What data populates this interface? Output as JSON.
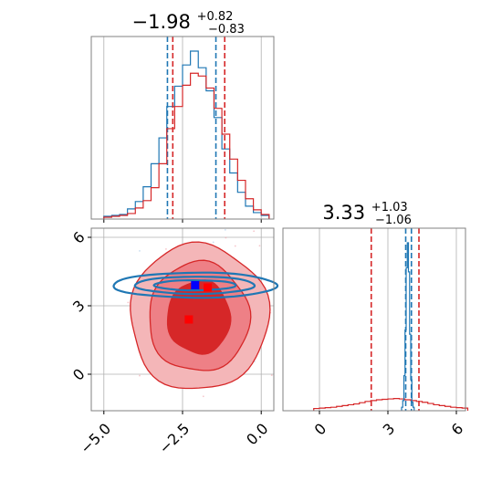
{
  "chart_data": [
    {
      "id": "marginal-x",
      "type": "histogram",
      "title": {
        "value": "−1.98",
        "sup": "+0.82",
        "sub": "−0.83"
      },
      "xlim": [
        -5.4,
        0.4
      ],
      "grid": true,
      "show_x_tick_labels": false,
      "x_ticks": [
        -5.0,
        -2.5,
        0.0
      ],
      "series": [
        {
          "color": "#1f77b4",
          "bin_edges": [
            -5.0,
            -4.75,
            -4.5,
            -4.25,
            -4.0,
            -3.75,
            -3.5,
            -3.25,
            -3.0,
            -2.75,
            -2.5,
            -2.25,
            -2.0,
            -1.75,
            -1.5,
            -1.25,
            -1.0,
            -0.75,
            -0.5,
            -0.25,
            0.0,
            0.25
          ],
          "counts": [
            1,
            2,
            3,
            9,
            17,
            33,
            58,
            86,
            120,
            142,
            165,
            180,
            162,
            137,
            108,
            74,
            48,
            27,
            12,
            5,
            2
          ],
          "quantile_lines": [
            -2.98,
            -1.44
          ]
        },
        {
          "color": "#d62728",
          "bin_edges": [
            -5.0,
            -4.75,
            -4.5,
            -4.25,
            -4.0,
            -3.75,
            -3.5,
            -3.25,
            -3.0,
            -2.75,
            -2.5,
            -2.25,
            -2.0,
            -1.75,
            -1.5,
            -1.25,
            -1.0,
            -0.75,
            -0.5,
            -0.25,
            0.0,
            0.25
          ],
          "counts": [
            0,
            1,
            2,
            4,
            10,
            18,
            32,
            58,
            96,
            120,
            143,
            156,
            153,
            140,
            118,
            90,
            63,
            40,
            20,
            8,
            3
          ],
          "quantile_lines": [
            -2.81,
            -1.16
          ]
        }
      ]
    },
    {
      "id": "joint",
      "type": "contour",
      "xlim": [
        -5.4,
        0.4
      ],
      "ylim": [
        -1.6,
        6.4
      ],
      "x_ticks": [
        -5.0,
        -2.5,
        0.0
      ],
      "x_tick_labels": [
        "−5.0",
        "−2.5",
        "0.0"
      ],
      "y_ticks": [
        0,
        3,
        6
      ],
      "y_tick_labels": [
        "0",
        "3",
        "6"
      ],
      "grid": true,
      "series": [
        {
          "color": "#d62728",
          "center": [
            -1.98,
            2.5
          ],
          "contour_widths": [
            2.2,
            1.6,
            1.0
          ],
          "contour_heights": [
            3.2,
            2.4,
            1.6
          ],
          "fills": [
            "#f4b6b8",
            "#ee8086",
            "#d62728"
          ],
          "truth_points": [
            [
              -1.7,
              3.8
            ],
            [
              -2.3,
              2.4
            ]
          ]
        },
        {
          "color": "#1f77b4",
          "center": [
            -2.1,
            3.9
          ],
          "contour_widths": [
            2.6,
            1.9,
            1.3
          ],
          "contour_heights": [
            0.55,
            0.38,
            0.22
          ],
          "truth_points": [
            [
              -2.1,
              3.9
            ]
          ],
          "truth_color": "#0000ff"
        }
      ]
    },
    {
      "id": "marginal-y",
      "type": "histogram",
      "title": {
        "value": "3.33",
        "sup": "+1.03",
        "sub": "−1.06"
      },
      "xlim": [
        -1.6,
        6.4
      ],
      "x_ticks": [
        0,
        3,
        6
      ],
      "x_tick_labels": [
        "0",
        "3",
        "6"
      ],
      "grid": true,
      "series": [
        {
          "color": "#d62728",
          "bin_edges": [
            -0.25,
            0.0,
            0.25,
            0.5,
            0.75,
            1.0,
            1.25,
            1.5,
            1.75,
            2.0,
            2.25,
            2.5,
            2.75,
            3.0,
            3.25,
            3.5,
            3.75,
            4.0,
            4.25,
            4.5,
            4.75,
            5.0,
            5.25,
            5.5,
            5.75,
            6.0,
            6.25,
            6.5
          ],
          "counts": [
            0.5,
            1,
            1.5,
            2,
            3,
            4,
            5,
            6,
            7.5,
            9,
            10,
            11,
            11.5,
            12,
            12.5,
            12,
            11,
            10,
            9,
            8,
            6.5,
            5,
            4,
            3,
            2,
            1.5,
            1
          ],
          "quantile_lines": [
            2.27,
            4.36
          ]
        },
        {
          "color": "#1f77b4",
          "bin_edges": [
            3.6,
            3.65,
            3.7,
            3.75,
            3.8,
            3.85,
            3.9,
            3.95,
            4.0,
            4.05,
            4.1,
            4.15
          ],
          "counts": [
            2,
            10,
            40,
            95,
            170,
            200,
            165,
            90,
            35,
            8,
            2
          ],
          "quantile_lines": [
            3.78,
            4.03
          ]
        }
      ]
    }
  ]
}
